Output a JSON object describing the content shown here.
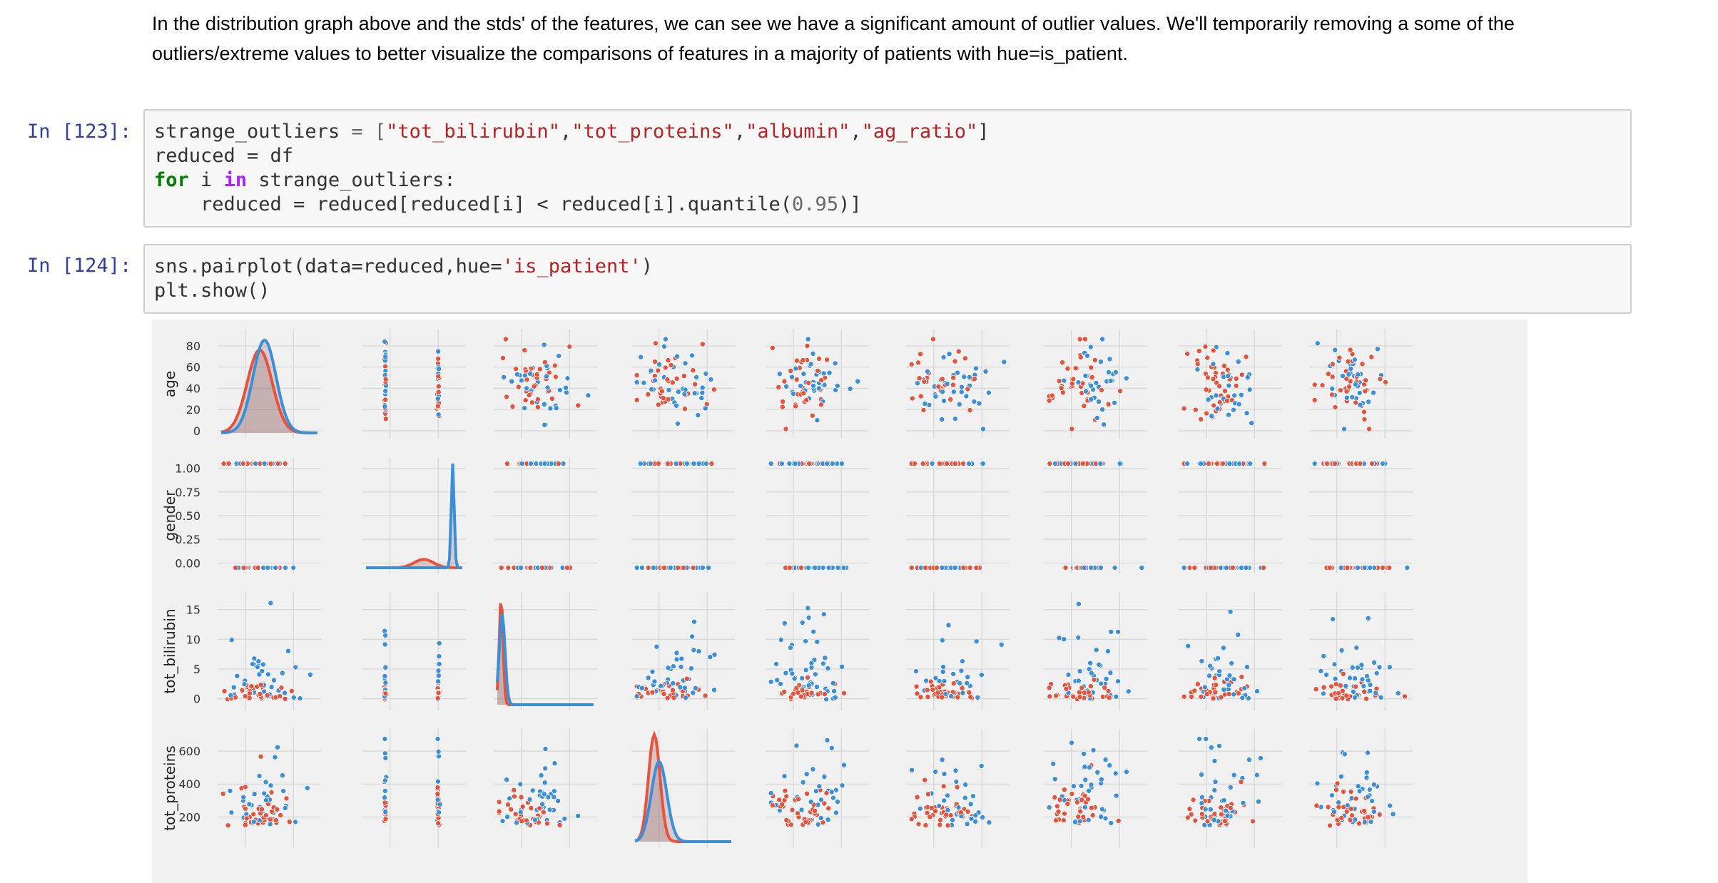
{
  "markdown": {
    "line1": "In the distribution graph above and the stds' of the features, we can see we have a significant amount of outlier values. We'll temporarily removing a some of the",
    "line2": "outliers/extreme values to better visualize the comparisons of features in a majority of patients with hue=is_patient."
  },
  "cell123": {
    "prompt": "In [123]:",
    "line1": {
      "a": "strange_outliers ",
      "b": "= [",
      "s1": "\"tot_bilirubin\"",
      "s2": "\"tot_proteins\"",
      "s3": "\"albumin\"",
      "s4": "\"ag_ratio\"",
      "c": "]"
    },
    "line2": "reduced = df",
    "line3": {
      "kw_for": "for",
      "i": " i ",
      "kw_in": "in",
      "rest": " strange_outliers:"
    },
    "line4": {
      "a": "    reduced = reduced[reduced[i] < reduced[i].quantile(",
      "num": "0.95",
      "b": ")]"
    }
  },
  "cell124": {
    "prompt": "In [124]:",
    "line1": {
      "a": "sns.pairplot(data=reduced,hue=",
      "s": "'is_patient'",
      "b": ")"
    },
    "line2": "plt.show()"
  },
  "chart_data": {
    "type": "scatter",
    "title": "",
    "description_rows": [
      "age",
      "gender",
      "tot_bilirubin",
      "tot_proteins"
    ],
    "row_labels": [
      "age",
      "gender",
      "tot_bilirubin",
      "tot_proteins"
    ],
    "row_ticks": [
      [
        "80",
        "60",
        "40",
        "20",
        "0"
      ],
      [
        "1.00",
        "0.75",
        "0.50",
        "0.25",
        "0.00"
      ],
      [
        "15",
        "10",
        "5",
        "0"
      ],
      [
        "600",
        "400",
        "200"
      ]
    ],
    "row_tick_values": [
      [
        80,
        60,
        40,
        20,
        0
      ],
      [
        1.0,
        0.75,
        0.5,
        0.25,
        0.0
      ],
      [
        15,
        10,
        5,
        0
      ],
      [
        600,
        400,
        200
      ]
    ],
    "ylims": [
      [
        -2,
        90
      ],
      [
        -0.05,
        1.05
      ],
      [
        -1,
        17
      ],
      [
        50,
        700
      ]
    ],
    "hue": "is_patient",
    "series_colors": {
      "is_patient_1": "#e5533c",
      "is_patient_2": "#3a8fd8"
    },
    "columns_visible": 9,
    "diagonal": "kde",
    "grid": true
  },
  "colors": {
    "background": "#f0f0f0",
    "grid": "#d8d8d8",
    "red": "#e5533c",
    "blue": "#3a8fd8"
  }
}
